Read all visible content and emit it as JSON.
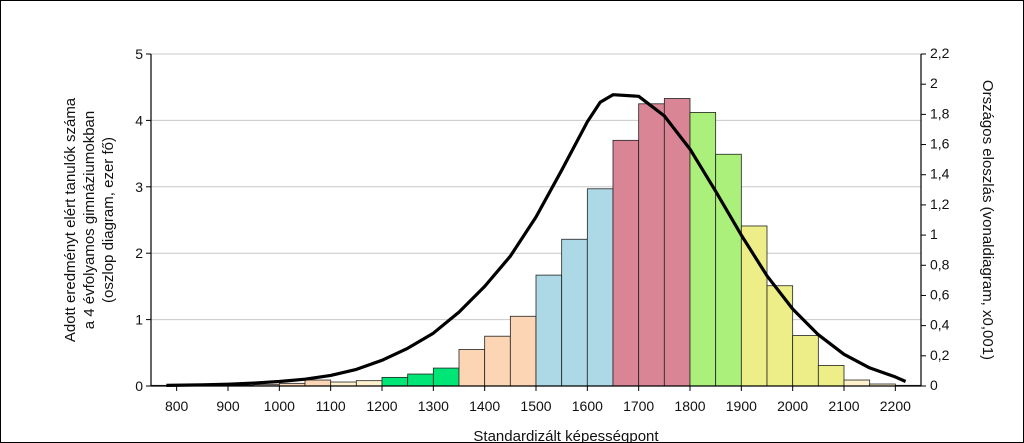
{
  "chart_data": {
    "type": "bar",
    "xlabel": "Standardizált képességpont",
    "ylabel_left": [
      "Adott eredményt elért tanulók száma",
      "a 4 évfolyamos gimnáziumokban",
      "(oszlop diagram, ezer fő)"
    ],
    "ylabel_right": "Országos eloszlás (vonaldiagram, x0,001)",
    "xlim": [
      750,
      2250
    ],
    "ylim_left": [
      0,
      5
    ],
    "ylim_right": [
      0,
      2.2
    ],
    "xticks": [
      "800",
      "900",
      "1000",
      "1100",
      "1200",
      "1300",
      "1400",
      "1500",
      "1600",
      "1700",
      "1800",
      "1900",
      "2000",
      "2100",
      "2200"
    ],
    "yticks_left": [
      "0",
      "1",
      "2",
      "3",
      "4",
      "5"
    ],
    "yticks_right": [
      "0",
      "0,2",
      "0,4",
      "0,6",
      "0,8",
      "1",
      "1,2",
      "1,4",
      "1,6",
      "1,8",
      "2",
      "2,2"
    ],
    "grid": true,
    "bin_width": 50,
    "bars": [
      {
        "x": 775,
        "value": 0.01,
        "color": "#fde9d9"
      },
      {
        "x": 825,
        "value": 0.01,
        "color": "#fde9d9"
      },
      {
        "x": 875,
        "value": 0.01,
        "color": "#fde9d9"
      },
      {
        "x": 925,
        "value": 0.01,
        "color": "#fde9d9"
      },
      {
        "x": 975,
        "value": 0.02,
        "color": "#fcd5b4"
      },
      {
        "x": 1025,
        "value": 0.04,
        "color": "#fcd5b4"
      },
      {
        "x": 1075,
        "value": 0.09,
        "color": "#fcd5b4"
      },
      {
        "x": 1125,
        "value": 0.06,
        "color": "#fff2cc"
      },
      {
        "x": 1175,
        "value": 0.08,
        "color": "#fff2cc"
      },
      {
        "x": 1225,
        "value": 0.13,
        "color": "#00e676"
      },
      {
        "x": 1275,
        "value": 0.18,
        "color": "#00e676"
      },
      {
        "x": 1325,
        "value": 0.27,
        "color": "#00e676"
      },
      {
        "x": 1375,
        "value": 0.55,
        "color": "#fcd5b4"
      },
      {
        "x": 1425,
        "value": 0.75,
        "color": "#fcd5b4"
      },
      {
        "x": 1475,
        "value": 1.05,
        "color": "#fcd5b4"
      },
      {
        "x": 1525,
        "value": 1.67,
        "color": "#add8e6"
      },
      {
        "x": 1575,
        "value": 2.21,
        "color": "#add8e6"
      },
      {
        "x": 1625,
        "value": 2.97,
        "color": "#add8e6"
      },
      {
        "x": 1675,
        "value": 3.7,
        "color": "#d98595"
      },
      {
        "x": 1725,
        "value": 4.25,
        "color": "#d98595"
      },
      {
        "x": 1775,
        "value": 4.33,
        "color": "#d98595"
      },
      {
        "x": 1825,
        "value": 4.12,
        "color": "#aaf07a"
      },
      {
        "x": 1875,
        "value": 3.49,
        "color": "#aaf07a"
      },
      {
        "x": 1925,
        "value": 2.41,
        "color": "#eeee88"
      },
      {
        "x": 1975,
        "value": 1.51,
        "color": "#eeee88"
      },
      {
        "x": 2025,
        "value": 0.76,
        "color": "#eeee88"
      },
      {
        "x": 2075,
        "value": 0.31,
        "color": "#eeee88"
      },
      {
        "x": 2125,
        "value": 0.09,
        "color": "#fff2cc"
      },
      {
        "x": 2175,
        "value": 0.03,
        "color": "#fff2cc"
      },
      {
        "x": 2225,
        "value": 0.01,
        "color": "#fff2cc"
      }
    ],
    "line": {
      "axis": "right",
      "color": "#000000",
      "x": [
        780,
        850,
        900,
        950,
        1000,
        1050,
        1100,
        1150,
        1200,
        1250,
        1300,
        1350,
        1400,
        1450,
        1500,
        1550,
        1600,
        1625,
        1650,
        1700,
        1750,
        1800,
        1850,
        1900,
        1950,
        2000,
        2050,
        2100,
        2150,
        2200,
        2220
      ],
      "y": [
        0.004,
        0.008,
        0.012,
        0.019,
        0.03,
        0.045,
        0.07,
        0.11,
        0.17,
        0.25,
        0.35,
        0.49,
        0.66,
        0.86,
        1.12,
        1.43,
        1.75,
        1.88,
        1.93,
        1.92,
        1.79,
        1.57,
        1.29,
        1.0,
        0.73,
        0.51,
        0.34,
        0.21,
        0.12,
        0.06,
        0.03
      ]
    }
  }
}
